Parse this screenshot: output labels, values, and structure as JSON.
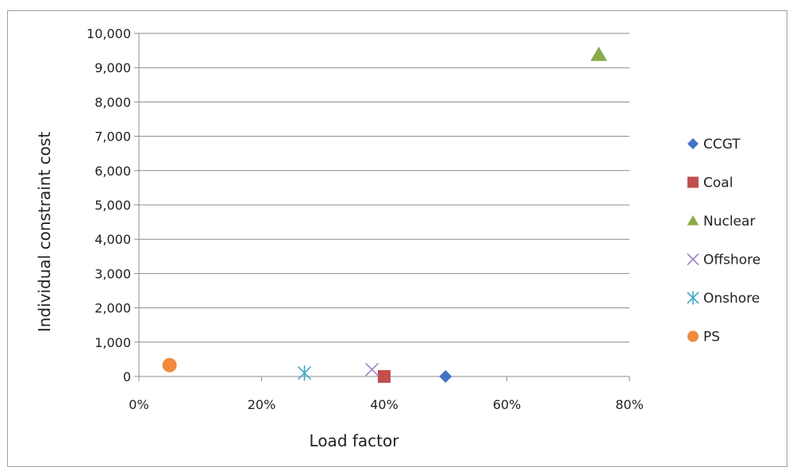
{
  "chart_data": {
    "type": "scatter",
    "title": "",
    "xlabel": "Load factor",
    "ylabel": "Individual constraint cost",
    "xlim": [
      0,
      0.8
    ],
    "ylim": [
      0,
      10000
    ],
    "x_ticks": [
      "0%",
      "20%",
      "40%",
      "60%",
      "80%"
    ],
    "x_tick_values": [
      0,
      0.2,
      0.4,
      0.6,
      0.8
    ],
    "y_ticks": [
      "0",
      "1,000",
      "2,000",
      "3,000",
      "4,000",
      "5,000",
      "6,000",
      "7,000",
      "8,000",
      "9,000",
      "10,000"
    ],
    "y_tick_values": [
      0,
      1000,
      2000,
      3000,
      4000,
      5000,
      6000,
      7000,
      8000,
      9000,
      10000
    ],
    "grid": "horizontal",
    "legend_position": "right",
    "series": [
      {
        "name": "CCGT",
        "marker": "diamond",
        "color": "#4472c4",
        "points": [
          {
            "x": 0.5,
            "y": 0
          }
        ]
      },
      {
        "name": "Coal",
        "marker": "square",
        "color": "#c0504d",
        "points": [
          {
            "x": 0.4,
            "y": 0
          }
        ]
      },
      {
        "name": "Nuclear",
        "marker": "triangle",
        "color": "#8aab4b",
        "points": [
          {
            "x": 0.75,
            "y": 9380
          }
        ]
      },
      {
        "name": "Offshore",
        "marker": "x",
        "color": "#9e86c2",
        "points": [
          {
            "x": 0.38,
            "y": 200
          }
        ]
      },
      {
        "name": "Onshore",
        "marker": "asterisk",
        "color": "#3fa6c5",
        "points": [
          {
            "x": 0.27,
            "y": 100
          }
        ]
      },
      {
        "name": "PS",
        "marker": "circle",
        "color": "#f08a3c",
        "points": [
          {
            "x": 0.05,
            "y": 330
          }
        ]
      }
    ]
  }
}
